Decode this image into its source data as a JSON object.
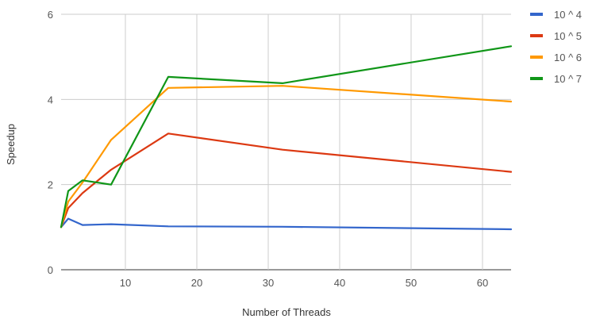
{
  "chart_data": {
    "type": "line",
    "title": "",
    "xlabel": "Number of Threads",
    "ylabel": "Speedup",
    "xlim": [
      1,
      64
    ],
    "ylim": [
      0,
      6
    ],
    "x_ticks": [
      10,
      20,
      30,
      40,
      50,
      60
    ],
    "y_ticks": [
      0,
      2,
      4,
      6
    ],
    "grid": true,
    "legend_position": "right",
    "x": [
      1,
      2,
      4,
      8,
      16,
      32,
      64
    ],
    "series": [
      {
        "name": "10 ^ 4",
        "color": "#3366cc",
        "values": [
          1.0,
          1.2,
          1.05,
          1.07,
          1.02,
          1.01,
          0.95
        ]
      },
      {
        "name": "10 ^ 5",
        "color": "#dc3912",
        "values": [
          1.0,
          1.45,
          1.8,
          2.35,
          3.2,
          2.82,
          2.3
        ]
      },
      {
        "name": "10 ^ 6",
        "color": "#ff9900",
        "values": [
          1.0,
          1.6,
          2.05,
          3.05,
          4.27,
          4.32,
          3.95
        ]
      },
      {
        "name": "10 ^ 7",
        "color": "#109618",
        "values": [
          1.0,
          1.85,
          2.1,
          2.0,
          4.53,
          4.38,
          5.25
        ]
      }
    ]
  }
}
